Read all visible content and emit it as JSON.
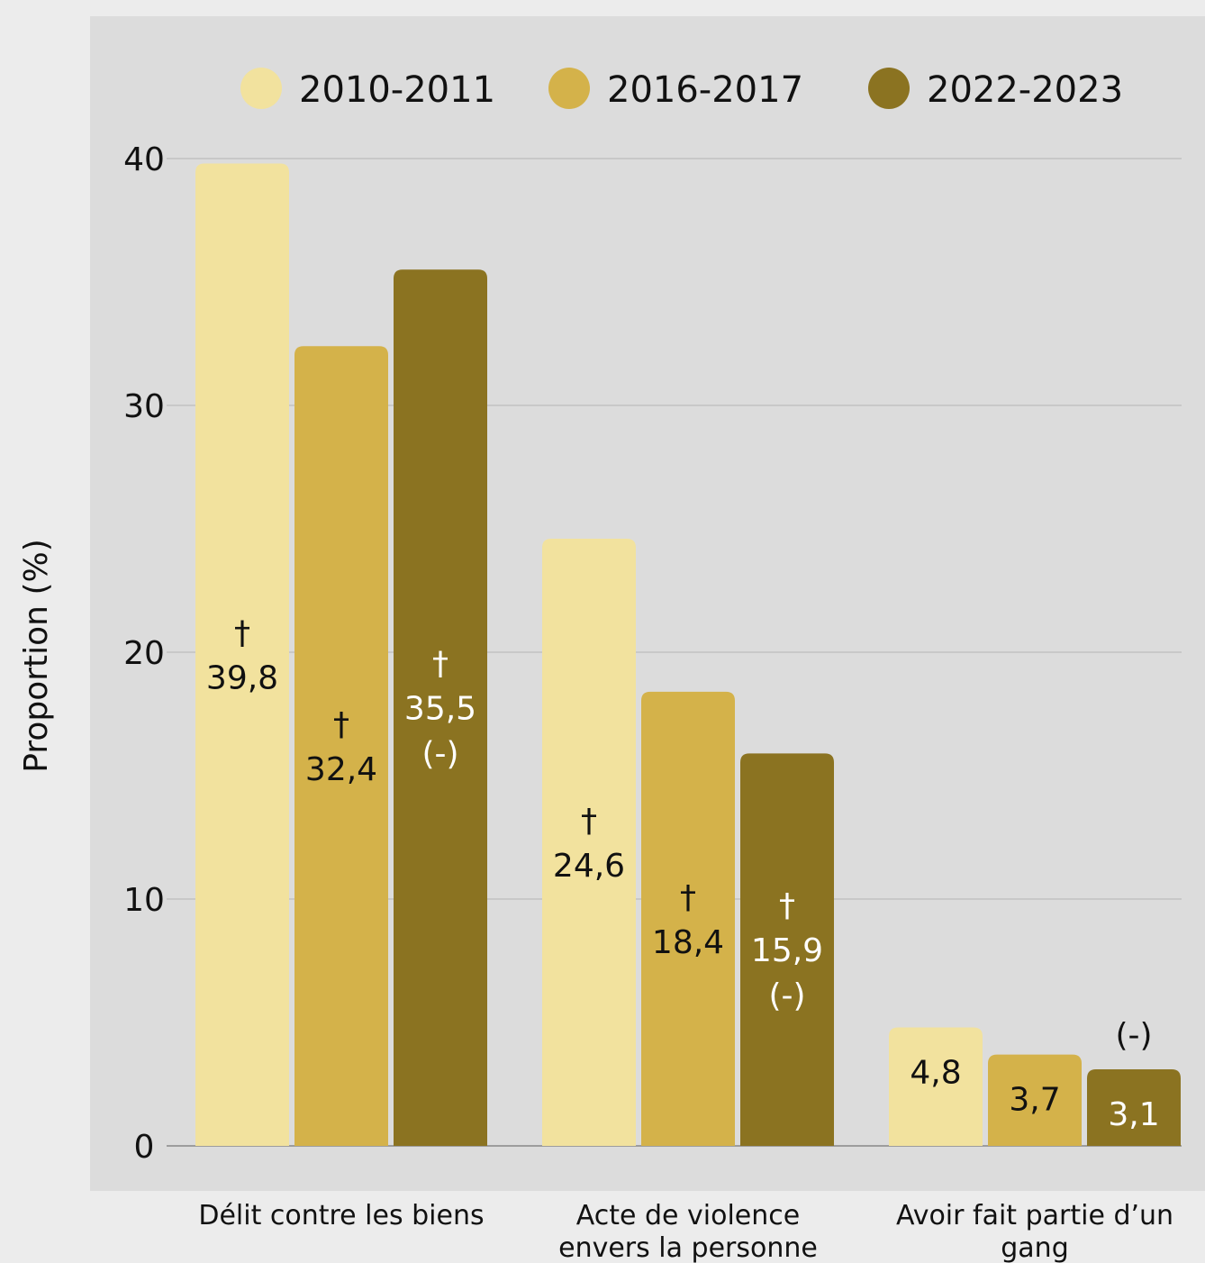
{
  "chart_data": {
    "type": "bar",
    "title": "",
    "xlabel": "",
    "ylabel": "Proportion (%)",
    "ylim": [
      0,
      40
    ],
    "yticks": [
      "0",
      "10",
      "20",
      "30",
      "40"
    ],
    "grid": true,
    "legend_position": "top",
    "categories": [
      [
        "Délit contre les biens"
      ],
      [
        "Acte de violence",
        "envers la personne"
      ],
      [
        "Avoir fait partie d’un",
        "gang"
      ]
    ],
    "series": [
      {
        "name": "2010-2011",
        "color": "#f2e29e",
        "values": [
          39.8,
          24.6,
          4.8
        ],
        "labels": [
          "39,8",
          "24,6",
          "4,8"
        ],
        "annotations": [
          [
            "†"
          ],
          [
            "†"
          ],
          []
        ]
      },
      {
        "name": "2016-2017",
        "color": "#d4b24a",
        "values": [
          32.4,
          18.4,
          3.7
        ],
        "labels": [
          "32,4",
          "18,4",
          "3,7"
        ],
        "annotations": [
          [
            "†"
          ],
          [
            "†"
          ],
          []
        ]
      },
      {
        "name": "2022-2023",
        "color": "#8b7321",
        "values": [
          35.5,
          15.9,
          3.1
        ],
        "labels": [
          "35,5",
          "15,9",
          "3,1"
        ],
        "annotations": [
          [
            "†",
            "(-)"
          ],
          [
            "†",
            "(-)"
          ],
          [
            "(-)"
          ]
        ]
      }
    ]
  }
}
